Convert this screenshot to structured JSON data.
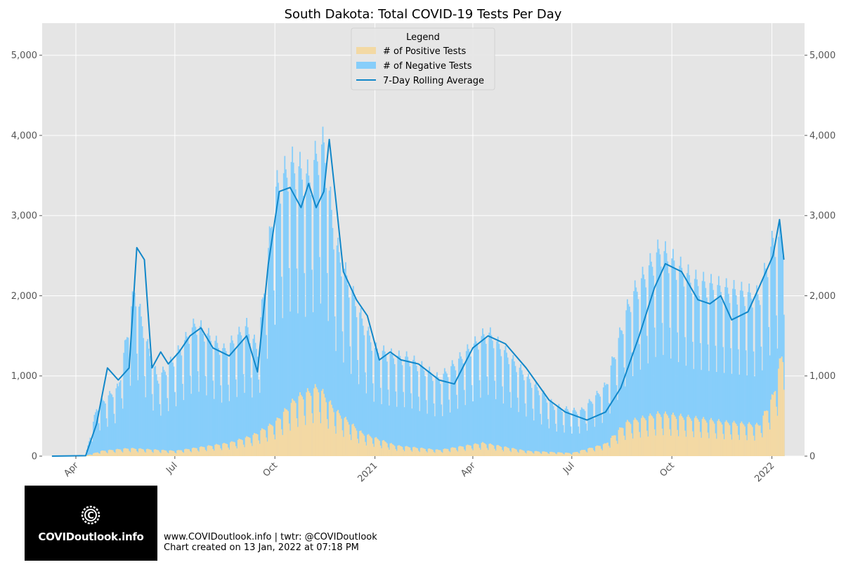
{
  "chart_data": {
    "type": "bar",
    "title": "South Dakota: Total COVID-19 Tests Per Day",
    "xlabel": "",
    "ylabel": "",
    "x_range": [
      "2020-03-01",
      "2022-01-31"
    ],
    "ylim": [
      0,
      5400
    ],
    "y_ticks": [
      0,
      1000,
      2000,
      3000,
      4000,
      5000
    ],
    "y_tick_labels": [
      "0",
      "1,000",
      "2,000",
      "3,000",
      "4,000",
      "5,000"
    ],
    "x_ticks": [
      "2020-04-01",
      "2020-07-01",
      "2020-10-01",
      "2021-01-01",
      "2021-04-01",
      "2021-07-01",
      "2021-10-01",
      "2022-01-01"
    ],
    "x_tick_labels": [
      "Apr",
      "Jul",
      "Oct",
      "2021",
      "Apr",
      "Jul",
      "Oct",
      "2022"
    ],
    "grid": true,
    "stacked": true,
    "legend": {
      "title": "Legend",
      "placement": "top-center",
      "entries": [
        "# of Positive Tests",
        "# of Negative Tests",
        "7-Day Rolling Average"
      ]
    },
    "colors": {
      "positive": "#f3d9a4",
      "negative": "#87cefa",
      "rolling_avg": "#1187c9",
      "plot_background": "#e5e5e5"
    },
    "series": [
      {
        "name": "# of Positive Tests",
        "kind": "bar",
        "anchors": [
          [
            "2020-03-10",
            0
          ],
          [
            "2020-04-10",
            5
          ],
          [
            "2020-04-25",
            60
          ],
          [
            "2020-05-20",
            90
          ],
          [
            "2020-07-01",
            60
          ],
          [
            "2020-08-20",
            150
          ],
          [
            "2020-09-10",
            230
          ],
          [
            "2020-10-01",
            380
          ],
          [
            "2020-10-20",
            650
          ],
          [
            "2020-11-10",
            780
          ],
          [
            "2020-11-25",
            520
          ],
          [
            "2020-12-20",
            260
          ],
          [
            "2021-01-20",
            120
          ],
          [
            "2021-03-01",
            70
          ],
          [
            "2021-04-10",
            150
          ],
          [
            "2021-05-20",
            60
          ],
          [
            "2021-07-01",
            35
          ],
          [
            "2021-08-01",
            140
          ],
          [
            "2021-08-20",
            380
          ],
          [
            "2021-09-20",
            480
          ],
          [
            "2021-10-20",
            430
          ],
          [
            "2021-11-20",
            380
          ],
          [
            "2021-12-20",
            350
          ],
          [
            "2022-01-02",
            680
          ],
          [
            "2022-01-10",
            1150
          ]
        ]
      },
      {
        "name": "# of Negative Tests",
        "kind": "bar",
        "anchors": [
          [
            "2020-03-10",
            0
          ],
          [
            "2020-04-10",
            10
          ],
          [
            "2020-04-20",
            500
          ],
          [
            "2020-05-10",
            700
          ],
          [
            "2020-05-25",
            1800
          ],
          [
            "2020-06-05",
            1200
          ],
          [
            "2020-06-15",
            800
          ],
          [
            "2020-07-01",
            1050
          ],
          [
            "2020-07-20",
            1400
          ],
          [
            "2020-08-15",
            1050
          ],
          [
            "2020-09-05",
            1250
          ],
          [
            "2020-09-15",
            950
          ],
          [
            "2020-10-01",
            2600
          ],
          [
            "2020-10-15",
            2700
          ],
          [
            "2020-11-01",
            2400
          ],
          [
            "2020-11-15",
            2800
          ],
          [
            "2020-11-25",
            1900
          ],
          [
            "2020-12-10",
            1500
          ],
          [
            "2021-01-01",
            1000
          ],
          [
            "2021-02-01",
            1000
          ],
          [
            "2021-03-01",
            800
          ],
          [
            "2021-04-15",
            1250
          ],
          [
            "2021-05-15",
            900
          ],
          [
            "2021-06-15",
            520
          ],
          [
            "2021-07-10",
            450
          ],
          [
            "2021-08-01",
            650
          ],
          [
            "2021-08-25",
            1400
          ],
          [
            "2021-09-20",
            1850
          ],
          [
            "2021-10-20",
            1550
          ],
          [
            "2021-11-20",
            1500
          ],
          [
            "2021-12-20",
            1450
          ],
          [
            "2022-01-02",
            1750
          ],
          [
            "2022-01-10",
            1300
          ]
        ]
      },
      {
        "name": "7-Day Rolling Average",
        "kind": "line",
        "points": [
          [
            "2020-03-10",
            0
          ],
          [
            "2020-04-10",
            5
          ],
          [
            "2020-04-20",
            400
          ],
          [
            "2020-04-30",
            1100
          ],
          [
            "2020-05-10",
            950
          ],
          [
            "2020-05-20",
            1100
          ],
          [
            "2020-05-27",
            2600
          ],
          [
            "2020-06-03",
            2450
          ],
          [
            "2020-06-10",
            1100
          ],
          [
            "2020-06-18",
            1300
          ],
          [
            "2020-06-25",
            1150
          ],
          [
            "2020-07-05",
            1300
          ],
          [
            "2020-07-15",
            1500
          ],
          [
            "2020-07-25",
            1600
          ],
          [
            "2020-08-05",
            1350
          ],
          [
            "2020-08-20",
            1250
          ],
          [
            "2020-09-05",
            1500
          ],
          [
            "2020-09-15",
            1050
          ],
          [
            "2020-09-25",
            2400
          ],
          [
            "2020-10-05",
            3300
          ],
          [
            "2020-10-15",
            3350
          ],
          [
            "2020-10-25",
            3100
          ],
          [
            "2020-11-01",
            3400
          ],
          [
            "2020-11-08",
            3100
          ],
          [
            "2020-11-15",
            3300
          ],
          [
            "2020-11-20",
            3950
          ],
          [
            "2020-11-26",
            3200
          ],
          [
            "2020-12-03",
            2300
          ],
          [
            "2020-12-15",
            1950
          ],
          [
            "2020-12-25",
            1750
          ],
          [
            "2021-01-05",
            1200
          ],
          [
            "2021-01-15",
            1300
          ],
          [
            "2021-01-25",
            1200
          ],
          [
            "2021-02-10",
            1150
          ],
          [
            "2021-03-01",
            950
          ],
          [
            "2021-03-15",
            900
          ],
          [
            "2021-04-01",
            1350
          ],
          [
            "2021-04-15",
            1500
          ],
          [
            "2021-05-01",
            1400
          ],
          [
            "2021-05-20",
            1100
          ],
          [
            "2021-06-10",
            700
          ],
          [
            "2021-06-25",
            550
          ],
          [
            "2021-07-15",
            450
          ],
          [
            "2021-08-01",
            550
          ],
          [
            "2021-08-15",
            850
          ],
          [
            "2021-09-01",
            1500
          ],
          [
            "2021-09-15",
            2100
          ],
          [
            "2021-09-25",
            2400
          ],
          [
            "2021-10-10",
            2300
          ],
          [
            "2021-10-25",
            1950
          ],
          [
            "2021-11-05",
            1900
          ],
          [
            "2021-11-15",
            2000
          ],
          [
            "2021-11-25",
            1700
          ],
          [
            "2021-12-10",
            1800
          ],
          [
            "2021-12-20",
            2100
          ],
          [
            "2022-01-02",
            2500
          ],
          [
            "2022-01-08",
            2950
          ],
          [
            "2022-01-12",
            2450
          ]
        ]
      }
    ]
  },
  "footer": {
    "logo_text": "COVIDoutlook.info",
    "line1": "www.COVIDoutlook.info | twtr: @COVIDoutlook",
    "line2": "Chart created on 13 Jan, 2022 at 07:18 PM"
  }
}
